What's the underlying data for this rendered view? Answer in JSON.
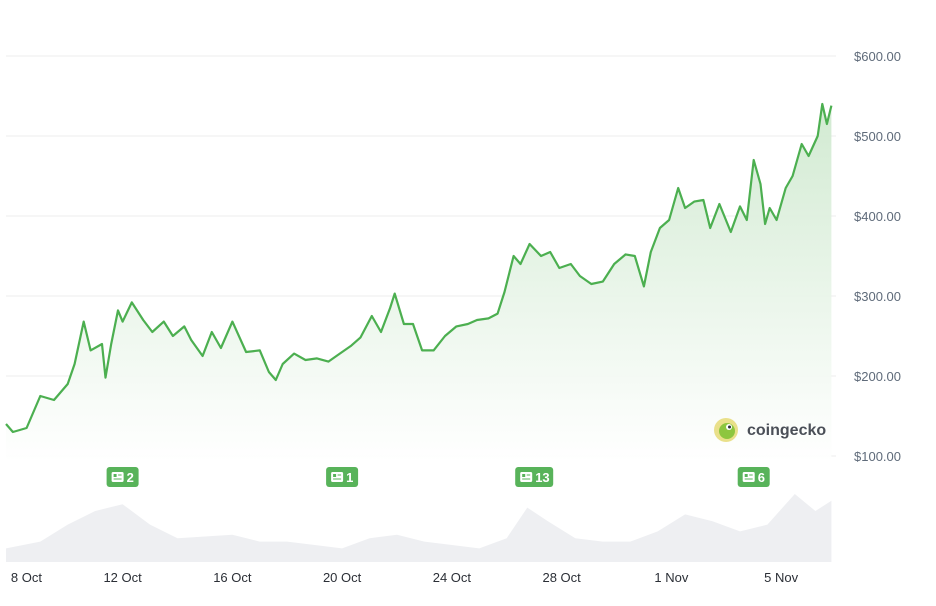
{
  "colors": {
    "line": "#4caf50",
    "area_top": "#cfe9cf",
    "news_badge": "#58b35a",
    "grid": "#ececec",
    "volume": "#eeeff2",
    "axis_text": "#5f6b7a"
  },
  "logo": {
    "text": "coingecko",
    "icon": "coingecko-gecko-icon"
  },
  "news_badges": [
    {
      "count": "2",
      "date": "2023-10-12",
      "icon": "news-icon"
    },
    {
      "count": "1",
      "date": "2023-10-20",
      "icon": "news-icon"
    },
    {
      "count": "13",
      "date": "2023-10-27",
      "icon": "news-icon"
    },
    {
      "count": "6",
      "date": "2023-11-04",
      "icon": "news-icon"
    }
  ],
  "chart_data": {
    "type": "area",
    "title": "",
    "xlabel": "",
    "ylabel": "",
    "y_unit": "USD",
    "ylim": [
      50,
      650
    ],
    "y_ticks": [
      100,
      200,
      300,
      400,
      500,
      600
    ],
    "y_tick_labels": [
      "$100.00",
      "$200.00",
      "$300.00",
      "$400.00",
      "$500.00",
      "$600.00"
    ],
    "x_range": [
      "2023-10-07T18:00",
      "2023-11-07T00:00"
    ],
    "x_ticks": [
      "2023-10-08",
      "2023-10-12",
      "2023-10-16",
      "2023-10-20",
      "2023-10-24",
      "2023-10-28",
      "2023-11-01",
      "2023-11-05"
    ],
    "x_tick_labels": [
      "8 Oct",
      "12 Oct",
      "16 Oct",
      "20 Oct",
      "24 Oct",
      "28 Oct",
      "1 Nov",
      "5 Nov"
    ],
    "grid": true,
    "series": [
      {
        "values": [
          [
            "2023-10-07T18:00",
            140
          ],
          [
            "2023-10-08T00:00",
            130
          ],
          [
            "2023-10-08T12:00",
            135
          ],
          [
            "2023-10-09T00:00",
            175
          ],
          [
            "2023-10-09T12:00",
            170
          ],
          [
            "2023-10-10T00:00",
            190
          ],
          [
            "2023-10-10T06:00",
            215
          ],
          [
            "2023-10-10T14:00",
            268
          ],
          [
            "2023-10-10T20:00",
            232
          ],
          [
            "2023-10-11T06:00",
            240
          ],
          [
            "2023-10-11T09:00",
            198
          ],
          [
            "2023-10-11T14:00",
            240
          ],
          [
            "2023-10-11T20:00",
            282
          ],
          [
            "2023-10-12T00:00",
            268
          ],
          [
            "2023-10-12T08:00",
            292
          ],
          [
            "2023-10-12T18:00",
            270
          ],
          [
            "2023-10-13T02:00",
            255
          ],
          [
            "2023-10-13T12:00",
            268
          ],
          [
            "2023-10-13T20:00",
            250
          ],
          [
            "2023-10-14T06:00",
            262
          ],
          [
            "2023-10-14T12:00",
            245
          ],
          [
            "2023-10-14T22:00",
            225
          ],
          [
            "2023-10-15T06:00",
            255
          ],
          [
            "2023-10-15T14:00",
            235
          ],
          [
            "2023-10-16T00:00",
            268
          ],
          [
            "2023-10-16T12:00",
            230
          ],
          [
            "2023-10-17T00:00",
            232
          ],
          [
            "2023-10-17T08:00",
            205
          ],
          [
            "2023-10-17T14:00",
            195
          ],
          [
            "2023-10-17T20:00",
            215
          ],
          [
            "2023-10-18T06:00",
            228
          ],
          [
            "2023-10-18T16:00",
            220
          ],
          [
            "2023-10-19T02:00",
            222
          ],
          [
            "2023-10-19T12:00",
            218
          ],
          [
            "2023-10-19T22:00",
            228
          ],
          [
            "2023-10-20T08:00",
            238
          ],
          [
            "2023-10-20T16:00",
            248
          ],
          [
            "2023-10-21T02:00",
            275
          ],
          [
            "2023-10-21T10:00",
            255
          ],
          [
            "2023-10-21T18:00",
            285
          ],
          [
            "2023-10-21T22:00",
            303
          ],
          [
            "2023-10-22T06:00",
            265
          ],
          [
            "2023-10-22T14:00",
            265
          ],
          [
            "2023-10-22T22:00",
            232
          ],
          [
            "2023-10-23T08:00",
            232
          ],
          [
            "2023-10-23T18:00",
            250
          ],
          [
            "2023-10-24T04:00",
            262
          ],
          [
            "2023-10-24T14:00",
            265
          ],
          [
            "2023-10-24T22:00",
            270
          ],
          [
            "2023-10-25T08:00",
            272
          ],
          [
            "2023-10-25T16:00",
            278
          ],
          [
            "2023-10-25T22:00",
            305
          ],
          [
            "2023-10-26T06:00",
            350
          ],
          [
            "2023-10-26T12:00",
            340
          ],
          [
            "2023-10-26T20:00",
            365
          ],
          [
            "2023-10-27T06:00",
            350
          ],
          [
            "2023-10-27T14:00",
            355
          ],
          [
            "2023-10-27T22:00",
            335
          ],
          [
            "2023-10-28T08:00",
            340
          ],
          [
            "2023-10-28T16:00",
            325
          ],
          [
            "2023-10-29T02:00",
            315
          ],
          [
            "2023-10-29T12:00",
            318
          ],
          [
            "2023-10-29T22:00",
            340
          ],
          [
            "2023-10-30T08:00",
            352
          ],
          [
            "2023-10-30T16:00",
            350
          ],
          [
            "2023-10-31T00:00",
            312
          ],
          [
            "2023-10-31T06:00",
            355
          ],
          [
            "2023-10-31T14:00",
            385
          ],
          [
            "2023-10-31T22:00",
            395
          ],
          [
            "2023-11-01T06:00",
            435
          ],
          [
            "2023-11-01T12:00",
            410
          ],
          [
            "2023-11-01T20:00",
            418
          ],
          [
            "2023-11-02T04:00",
            420
          ],
          [
            "2023-11-02T10:00",
            385
          ],
          [
            "2023-11-02T18:00",
            415
          ],
          [
            "2023-11-03T04:00",
            380
          ],
          [
            "2023-11-03T12:00",
            412
          ],
          [
            "2023-11-03T18:00",
            395
          ],
          [
            "2023-11-04T00:00",
            470
          ],
          [
            "2023-11-04T06:00",
            440
          ],
          [
            "2023-11-04T10:00",
            390
          ],
          [
            "2023-11-04T14:00",
            410
          ],
          [
            "2023-11-04T20:00",
            395
          ],
          [
            "2023-11-05T04:00",
            435
          ],
          [
            "2023-11-05T10:00",
            450
          ],
          [
            "2023-11-05T18:00",
            490
          ],
          [
            "2023-11-06T00:00",
            475
          ],
          [
            "2023-11-06T08:00",
            500
          ],
          [
            "2023-11-06T12:00",
            540
          ],
          [
            "2023-11-06T16:00",
            515
          ],
          [
            "2023-11-06T20:00",
            538
          ]
        ]
      }
    ],
    "volume": [
      [
        "2023-10-07T18:00",
        0.2
      ],
      [
        "2023-10-09T00:00",
        0.3
      ],
      [
        "2023-10-10T00:00",
        0.55
      ],
      [
        "2023-10-11T00:00",
        0.75
      ],
      [
        "2023-10-12T00:00",
        0.85
      ],
      [
        "2023-10-13T00:00",
        0.55
      ],
      [
        "2023-10-14T00:00",
        0.35
      ],
      [
        "2023-10-16T00:00",
        0.4
      ],
      [
        "2023-10-17T00:00",
        0.3
      ],
      [
        "2023-10-18T00:00",
        0.3
      ],
      [
        "2023-10-19T00:00",
        0.25
      ],
      [
        "2023-10-20T00:00",
        0.2
      ],
      [
        "2023-10-21T00:00",
        0.35
      ],
      [
        "2023-10-22T00:00",
        0.4
      ],
      [
        "2023-10-23T00:00",
        0.3
      ],
      [
        "2023-10-24T00:00",
        0.25
      ],
      [
        "2023-10-25T00:00",
        0.2
      ],
      [
        "2023-10-26T00:00",
        0.35
      ],
      [
        "2023-10-26T18:00",
        0.8
      ],
      [
        "2023-10-27T12:00",
        0.6
      ],
      [
        "2023-10-28T12:00",
        0.35
      ],
      [
        "2023-10-29T12:00",
        0.3
      ],
      [
        "2023-10-30T12:00",
        0.3
      ],
      [
        "2023-10-31T12:00",
        0.45
      ],
      [
        "2023-11-01T12:00",
        0.7
      ],
      [
        "2023-11-02T12:00",
        0.6
      ],
      [
        "2023-11-03T12:00",
        0.45
      ],
      [
        "2023-11-04T12:00",
        0.55
      ],
      [
        "2023-11-05T12:00",
        1.0
      ],
      [
        "2023-11-06T06:00",
        0.75
      ],
      [
        "2023-11-06T20:00",
        0.9
      ]
    ]
  }
}
